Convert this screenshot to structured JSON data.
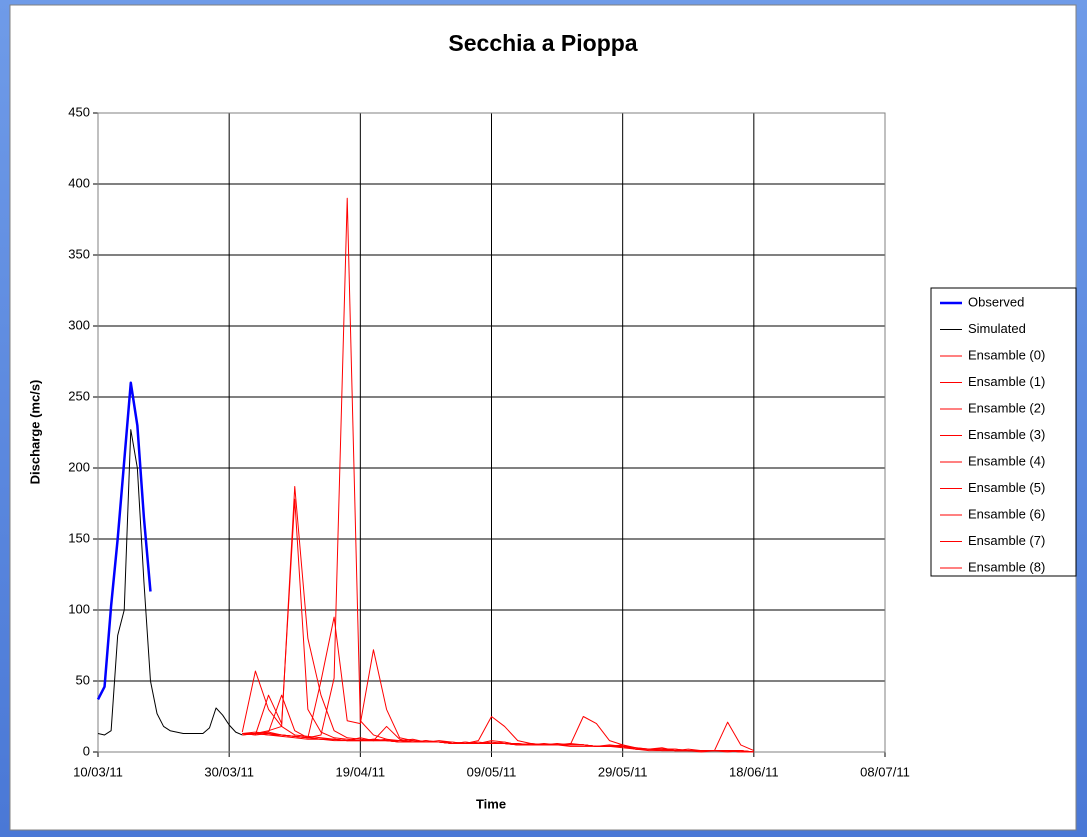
{
  "chart_data": {
    "type": "line",
    "title": "Secchia a Pioppa",
    "xlabel": "Time",
    "ylabel": "Discharge (mc/s)",
    "xlim": [
      "10/03/11",
      "08/07/11"
    ],
    "xticks": [
      "10/03/11",
      "30/03/11",
      "19/04/11",
      "09/05/11",
      "29/05/11",
      "18/06/11",
      "08/07/11"
    ],
    "ylim": [
      0,
      450
    ],
    "yticks": [
      0,
      50,
      100,
      150,
      200,
      250,
      300,
      350,
      400,
      450
    ],
    "grid": true,
    "legend": "right",
    "series": [
      {
        "name": "Observed",
        "color": "#0000ff",
        "width": 2.5,
        "x": [
          "10/03/11",
          "11/03/11",
          "12/03/11",
          "13/03/11",
          "14/03/11",
          "15/03/11",
          "16/03/11",
          "17/03/11",
          "18/03/11"
        ],
        "values": [
          37,
          46,
          103,
          150,
          205,
          260,
          230,
          165,
          113
        ]
      },
      {
        "name": "Simulated",
        "color": "#000000",
        "width": 1,
        "x": [
          "10/03/11",
          "11/03/11",
          "12/03/11",
          "13/03/11",
          "14/03/11",
          "15/03/11",
          "16/03/11",
          "17/03/11",
          "18/03/11",
          "19/03/11",
          "20/03/11",
          "21/03/11",
          "22/03/11",
          "23/03/11",
          "24/03/11",
          "25/03/11",
          "26/03/11",
          "27/03/11",
          "28/03/11",
          "29/03/11",
          "30/03/11",
          "31/03/11",
          "01/04/11"
        ],
        "values": [
          13,
          12,
          15,
          82,
          100,
          227,
          200,
          120,
          50,
          27,
          18,
          15,
          14,
          13,
          13,
          13,
          13,
          17,
          31,
          26,
          19,
          14,
          12
        ]
      },
      {
        "name": "Ensamble (0)",
        "color": "#ff0000",
        "width": 1,
        "x": [
          "01/04/11",
          "03/04/11",
          "05/04/11",
          "07/04/11",
          "09/04/11",
          "11/04/11",
          "13/04/11",
          "15/04/11",
          "17/04/11",
          "19/04/11",
          "21/04/11",
          "23/04/11",
          "25/04/11",
          "27/04/11",
          "29/04/11",
          "01/05/11",
          "03/05/11",
          "05/05/11",
          "07/05/11",
          "09/05/11",
          "11/05/11",
          "13/05/11",
          "15/05/11",
          "17/05/11",
          "19/05/11",
          "21/05/11",
          "23/05/11",
          "25/05/11",
          "27/05/11",
          "29/05/11",
          "31/05/11",
          "02/06/11",
          "04/06/11",
          "06/06/11",
          "08/06/11",
          "10/06/11",
          "12/06/11",
          "14/06/11",
          "16/06/11",
          "18/06/11"
        ],
        "values": [
          13,
          14,
          13,
          12,
          11,
          10,
          12,
          52,
          390,
          22,
          12,
          9,
          8,
          7,
          7,
          8,
          7,
          6,
          6,
          7,
          6,
          6,
          5,
          5,
          5,
          4,
          4,
          4,
          4,
          5,
          2,
          1,
          1,
          1,
          1,
          0,
          1,
          1,
          0,
          0
        ]
      },
      {
        "name": "Ensamble (1)",
        "color": "#ff0000",
        "width": 1,
        "x": [
          "01/04/11",
          "03/04/11",
          "05/04/11",
          "07/04/11",
          "09/04/11",
          "11/04/11",
          "13/04/11",
          "15/04/11",
          "17/04/11",
          "19/04/11",
          "21/04/11",
          "23/04/11",
          "25/04/11",
          "27/04/11",
          "29/04/11",
          "01/05/11",
          "03/05/11",
          "05/05/11",
          "07/05/11",
          "09/05/11",
          "11/05/11",
          "13/05/11",
          "15/05/11",
          "17/05/11",
          "19/05/11",
          "21/05/11",
          "23/05/11",
          "25/05/11",
          "27/05/11",
          "29/05/11",
          "31/05/11",
          "02/06/11",
          "04/06/11",
          "06/06/11",
          "08/06/11",
          "10/06/11",
          "12/06/11",
          "14/06/11",
          "16/06/11",
          "18/06/11"
        ],
        "values": [
          12,
          13,
          15,
          18,
          187,
          80,
          40,
          15,
          10,
          9,
          8,
          8,
          8,
          9,
          7,
          7,
          6,
          7,
          6,
          8,
          7,
          5,
          6,
          5,
          5,
          6,
          5,
          4,
          4,
          4,
          3,
          2,
          2,
          2,
          1,
          1,
          1,
          1,
          0,
          0
        ]
      },
      {
        "name": "Ensamble (2)",
        "color": "#ff0000",
        "width": 1,
        "x": [
          "01/04/11",
          "03/04/11",
          "05/04/11",
          "07/04/11",
          "09/04/11",
          "11/04/11",
          "13/04/11",
          "15/04/11",
          "17/04/11",
          "19/04/11",
          "21/04/11",
          "23/04/11",
          "25/04/11",
          "27/04/11",
          "29/04/11",
          "01/05/11",
          "03/05/11",
          "05/05/11",
          "07/05/11",
          "09/05/11",
          "11/05/11",
          "13/05/11",
          "15/05/11",
          "17/05/11",
          "19/05/11",
          "21/05/11",
          "23/05/11",
          "25/05/11",
          "27/05/11",
          "29/05/11",
          "31/05/11",
          "02/06/11",
          "04/06/11",
          "06/06/11",
          "08/06/11",
          "10/06/11",
          "12/06/11",
          "14/06/11",
          "16/06/11",
          "18/06/11"
        ],
        "values": [
          13,
          12,
          40,
          20,
          178,
          30,
          14,
          10,
          9,
          8,
          8,
          9,
          7,
          8,
          7,
          7,
          6,
          6,
          7,
          6,
          6,
          6,
          5,
          5,
          5,
          5,
          5,
          4,
          5,
          4,
          2,
          2,
          1,
          1,
          2,
          1,
          1,
          0,
          1,
          0
        ]
      },
      {
        "name": "Ensamble (3)",
        "color": "#ff0000",
        "width": 1,
        "x": [
          "01/04/11",
          "03/04/11",
          "05/04/11",
          "07/04/11",
          "09/04/11",
          "11/04/11",
          "13/04/11",
          "15/04/11",
          "17/04/11",
          "19/04/11",
          "21/04/11",
          "23/04/11",
          "25/04/11",
          "27/04/11",
          "29/04/11",
          "01/05/11",
          "03/05/11",
          "05/05/11",
          "07/05/11",
          "09/05/11",
          "11/05/11",
          "13/05/11",
          "15/05/11",
          "17/05/11",
          "19/05/11",
          "21/05/11",
          "23/05/11",
          "25/05/11",
          "27/05/11",
          "29/05/11",
          "31/05/11",
          "02/06/11",
          "04/06/11",
          "06/06/11",
          "08/06/11",
          "10/06/11",
          "12/06/11",
          "14/06/11",
          "16/06/11",
          "18/06/11"
        ],
        "values": [
          14,
          57,
          30,
          18,
          12,
          11,
          10,
          9,
          8,
          8,
          9,
          8,
          7,
          7,
          8,
          7,
          6,
          6,
          6,
          6,
          7,
          5,
          5,
          5,
          6,
          5,
          5,
          4,
          4,
          4,
          2,
          2,
          2,
          1,
          1,
          1,
          1,
          1,
          0,
          0
        ]
      },
      {
        "name": "Ensamble (4)",
        "color": "#ff0000",
        "width": 1,
        "x": [
          "01/04/11",
          "03/04/11",
          "05/04/11",
          "07/04/11",
          "09/04/11",
          "11/04/11",
          "13/04/11",
          "15/04/11",
          "17/04/11",
          "19/04/11",
          "21/04/11",
          "23/04/11",
          "25/04/11",
          "27/04/11",
          "29/04/11",
          "01/05/11",
          "03/05/11",
          "05/05/11",
          "07/05/11",
          "09/05/11",
          "11/05/11",
          "13/05/11",
          "15/05/11",
          "17/05/11",
          "19/05/11",
          "21/05/11",
          "23/05/11",
          "25/05/11",
          "27/05/11",
          "29/05/11",
          "31/05/11",
          "02/06/11",
          "04/06/11",
          "06/06/11",
          "08/06/11",
          "10/06/11",
          "12/06/11",
          "14/06/11",
          "16/06/11",
          "18/06/11"
        ],
        "values": [
          13,
          13,
          14,
          12,
          11,
          10,
          50,
          95,
          22,
          20,
          72,
          30,
          10,
          8,
          7,
          7,
          6,
          6,
          6,
          6,
          6,
          5,
          5,
          5,
          5,
          5,
          5,
          4,
          4,
          3,
          2,
          2,
          2,
          1,
          1,
          1,
          1,
          1,
          1,
          0
        ]
      },
      {
        "name": "Ensamble (5)",
        "color": "#ff0000",
        "width": 1,
        "x": [
          "01/04/11",
          "03/04/11",
          "05/04/11",
          "07/04/11",
          "09/04/11",
          "11/04/11",
          "13/04/11",
          "15/04/11",
          "17/04/11",
          "19/04/11",
          "21/04/11",
          "23/04/11",
          "25/04/11",
          "27/04/11",
          "29/04/11",
          "01/05/11",
          "03/05/11",
          "05/05/11",
          "07/05/11",
          "09/05/11",
          "11/05/11",
          "13/05/11",
          "15/05/11",
          "17/05/11",
          "19/05/11",
          "21/05/11",
          "23/05/11",
          "25/05/11",
          "27/05/11",
          "29/05/11",
          "31/05/11",
          "02/06/11",
          "04/06/11",
          "06/06/11",
          "08/06/11",
          "10/06/11",
          "12/06/11",
          "14/06/11",
          "16/06/11",
          "18/06/11"
        ],
        "values": [
          12,
          13,
          12,
          11,
          10,
          9,
          9,
          8,
          8,
          8,
          9,
          8,
          7,
          7,
          8,
          7,
          7,
          6,
          8,
          25,
          18,
          8,
          6,
          5,
          5,
          5,
          5,
          4,
          4,
          4,
          2,
          2,
          2,
          1,
          1,
          1,
          1,
          1,
          1,
          0
        ]
      },
      {
        "name": "Ensamble (6)",
        "color": "#ff0000",
        "width": 1,
        "x": [
          "01/04/11",
          "03/04/11",
          "05/04/11",
          "07/04/11",
          "09/04/11",
          "11/04/11",
          "13/04/11",
          "15/04/11",
          "17/04/11",
          "19/04/11",
          "21/04/11",
          "23/04/11",
          "25/04/11",
          "27/04/11",
          "29/04/11",
          "01/05/11",
          "03/05/11",
          "05/05/11",
          "07/05/11",
          "09/05/11",
          "11/05/11",
          "13/05/11",
          "15/05/11",
          "17/05/11",
          "19/05/11",
          "21/05/11",
          "23/05/11",
          "25/05/11",
          "27/05/11",
          "29/05/11",
          "31/05/11",
          "02/06/11",
          "04/06/11",
          "06/06/11",
          "08/06/11",
          "10/06/11",
          "12/06/11",
          "14/06/11",
          "16/06/11",
          "18/06/11"
        ],
        "values": [
          13,
          12,
          13,
          12,
          11,
          10,
          9,
          9,
          8,
          8,
          8,
          8,
          7,
          7,
          7,
          7,
          6,
          7,
          6,
          6,
          6,
          5,
          5,
          6,
          5,
          5,
          25,
          20,
          8,
          5,
          3,
          2,
          2,
          1,
          1,
          1,
          1,
          1,
          1,
          0
        ]
      },
      {
        "name": "Ensamble (7)",
        "color": "#ff0000",
        "width": 1,
        "x": [
          "01/04/11",
          "03/04/11",
          "05/04/11",
          "07/04/11",
          "09/04/11",
          "11/04/11",
          "13/04/11",
          "15/04/11",
          "17/04/11",
          "19/04/11",
          "21/04/11",
          "23/04/11",
          "25/04/11",
          "27/04/11",
          "29/04/11",
          "01/05/11",
          "03/05/11",
          "05/05/11",
          "07/05/11",
          "09/05/11",
          "11/05/11",
          "13/05/11",
          "15/05/11",
          "17/05/11",
          "19/05/11",
          "21/05/11",
          "23/05/11",
          "25/05/11",
          "27/05/11",
          "29/05/11",
          "31/05/11",
          "02/06/11",
          "04/06/11",
          "06/06/11",
          "08/06/11",
          "10/06/11",
          "12/06/11",
          "14/06/11",
          "16/06/11",
          "18/06/11"
        ],
        "values": [
          13,
          13,
          12,
          12,
          11,
          10,
          9,
          9,
          8,
          8,
          8,
          8,
          7,
          7,
          7,
          7,
          6,
          6,
          6,
          6,
          6,
          5,
          5,
          5,
          5,
          5,
          5,
          4,
          4,
          4,
          2,
          2,
          3,
          1,
          1,
          1,
          1,
          21,
          5,
          1
        ]
      },
      {
        "name": "Ensamble (8)",
        "color": "#ff0000",
        "width": 1,
        "x": [
          "01/04/11",
          "03/04/11",
          "05/04/11",
          "07/04/11",
          "09/04/11",
          "11/04/11",
          "13/04/11",
          "15/04/11",
          "17/04/11",
          "19/04/11",
          "21/04/11",
          "23/04/11",
          "25/04/11",
          "27/04/11",
          "29/04/11",
          "01/05/11",
          "03/05/11",
          "05/05/11",
          "07/05/11",
          "09/05/11",
          "11/05/11",
          "13/05/11",
          "15/05/11",
          "17/05/11",
          "19/05/11",
          "21/05/11",
          "23/05/11",
          "25/05/11",
          "27/05/11",
          "29/05/11",
          "31/05/11",
          "02/06/11",
          "04/06/11",
          "06/06/11",
          "08/06/11",
          "10/06/11",
          "12/06/11",
          "14/06/11",
          "16/06/11",
          "18/06/11"
        ],
        "values": [
          13,
          13,
          14,
          40,
          15,
          10,
          9,
          9,
          8,
          10,
          8,
          18,
          9,
          7,
          7,
          7,
          6,
          6,
          6,
          6,
          6,
          5,
          5,
          5,
          5,
          5,
          5,
          4,
          4,
          4,
          2,
          2,
          2,
          2,
          1,
          1,
          1,
          1,
          1,
          0
        ]
      }
    ]
  }
}
